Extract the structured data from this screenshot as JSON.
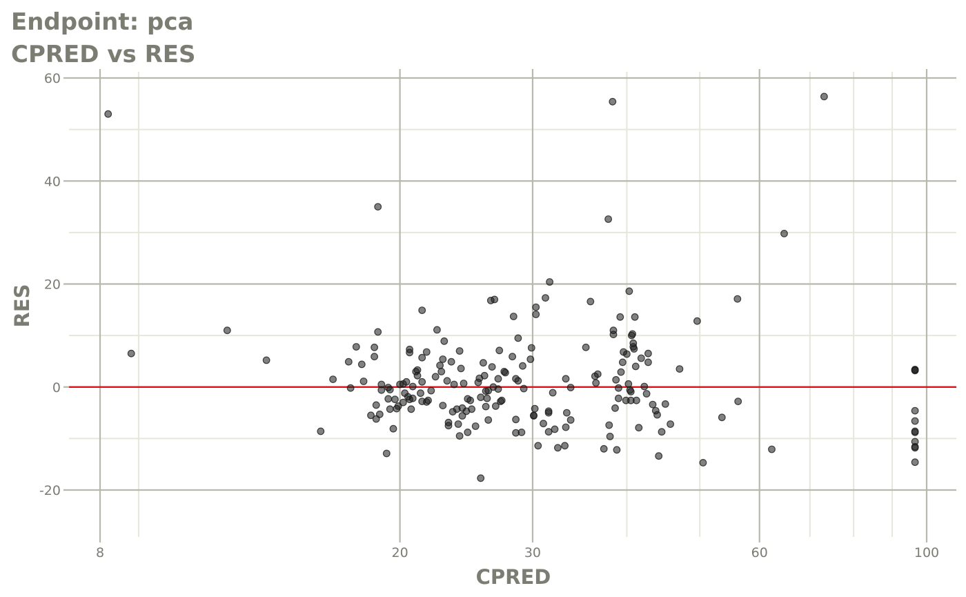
{
  "chart_data": {
    "type": "scatter",
    "title": "Endpoint:  pca",
    "subtitle": "CPRED vs RES",
    "xlabel": "CPRED",
    "ylabel": "RES",
    "x_scale": "log",
    "xlim": [
      7.5,
      118
    ],
    "ylim": [
      -29,
      62
    ],
    "x_ticks": [
      8,
      20,
      30,
      60,
      100
    ],
    "x_tick_labels": [
      "8",
      "20",
      "30",
      "60",
      "100"
    ],
    "x_minor_ticks": [
      9,
      40,
      50,
      70,
      80,
      90
    ],
    "y_ticks": [
      -20,
      0,
      20,
      40,
      60
    ],
    "y_tick_labels": [
      "-20",
      "0",
      "20",
      "40",
      "60"
    ],
    "y_minor_ticks": [
      -10,
      10,
      30,
      50
    ],
    "reference_line": {
      "y": 0,
      "color": "#e8141b"
    },
    "grid": true,
    "colors": {
      "grid_major": "#b8b8ae",
      "grid_minor": "#e6e6da",
      "point": "#1a1a1a",
      "text": "#7b7c72"
    },
    "points": [
      [
        8.2,
        53
      ],
      [
        8.8,
        6.5
      ],
      [
        11.8,
        11
      ],
      [
        13.3,
        5.2
      ],
      [
        16.3,
        1.5
      ],
      [
        15.7,
        -8.6
      ],
      [
        17.2,
        -0.2
      ],
      [
        17.1,
        4.9
      ],
      [
        17.5,
        7.8
      ],
      [
        17.8,
        4.4
      ],
      [
        17.9,
        1.1
      ],
      [
        18.3,
        -5.5
      ],
      [
        18.6,
        -6.2
      ],
      [
        18.8,
        -5.3
      ],
      [
        18.5,
        7.7
      ],
      [
        18.5,
        5.9
      ],
      [
        18.6,
        -3.5
      ],
      [
        18.7,
        10.7
      ],
      [
        18.7,
        35
      ],
      [
        18.9,
        0.5
      ],
      [
        18.9,
        -0.6
      ],
      [
        19.3,
        -0.1
      ],
      [
        19.4,
        -0.5
      ],
      [
        19.3,
        -2.3
      ],
      [
        19.4,
        -4.3
      ],
      [
        19.6,
        -8.1
      ],
      [
        19.2,
        -12.9
      ],
      [
        19.7,
        -2.4
      ],
      [
        19.8,
        -4.2
      ],
      [
        19.9,
        -3.7
      ],
      [
        20.0,
        0.5
      ],
      [
        20.2,
        -3.0
      ],
      [
        20.2,
        0.6
      ],
      [
        20.3,
        -1.2
      ],
      [
        20.4,
        1.0
      ],
      [
        20.5,
        -1.9
      ],
      [
        20.6,
        -2.4
      ],
      [
        20.6,
        7.3
      ],
      [
        20.6,
        6.7
      ],
      [
        20.8,
        -2.2
      ],
      [
        20.7,
        -4.3
      ],
      [
        20.8,
        0.1
      ],
      [
        21.0,
        3.0
      ],
      [
        21.1,
        3.3
      ],
      [
        21.1,
        2.2
      ],
      [
        21.3,
        -1.2
      ],
      [
        21.4,
        14.9
      ],
      [
        21.4,
        5.7
      ],
      [
        21.4,
        1.0
      ],
      [
        21.4,
        -2.8
      ],
      [
        21.7,
        6.8
      ],
      [
        21.8,
        -2.6
      ],
      [
        21.7,
        -2.9
      ],
      [
        22.0,
        -0.7
      ],
      [
        22.3,
        2.0
      ],
      [
        22.4,
        11.1
      ],
      [
        22.6,
        4.2
      ],
      [
        22.7,
        3.0
      ],
      [
        22.8,
        5.4
      ],
      [
        22.9,
        8.9
      ],
      [
        22.8,
        -3.6
      ],
      [
        23.1,
        1.2
      ],
      [
        23.2,
        -6.9
      ],
      [
        23.2,
        -7.5
      ],
      [
        23.4,
        4.9
      ],
      [
        23.5,
        -4.8
      ],
      [
        23.6,
        0.5
      ],
      [
        23.8,
        -4.3
      ],
      [
        23.9,
        -7.2
      ],
      [
        24.0,
        7.0
      ],
      [
        24.2,
        -5.6
      ],
      [
        24.2,
        -4.1
      ],
      [
        24.0,
        -9.5
      ],
      [
        24.1,
        3.6
      ],
      [
        24.3,
        0.7
      ],
      [
        24.5,
        -4.7
      ],
      [
        24.6,
        -2.3
      ],
      [
        24.6,
        -8.8
      ],
      [
        24.8,
        -2.6
      ],
      [
        24.9,
        -4.3
      ],
      [
        25.2,
        -7.6
      ],
      [
        25.4,
        0.9
      ],
      [
        25.5,
        1.7
      ],
      [
        25.6,
        -17.7
      ],
      [
        25.6,
        -2.0
      ],
      [
        25.8,
        4.7
      ],
      [
        25.9,
        2.2
      ],
      [
        26.0,
        -0.8
      ],
      [
        26.0,
        -3.8
      ],
      [
        26.1,
        -2.2
      ],
      [
        26.2,
        -6.4
      ],
      [
        26.2,
        -0.7
      ],
      [
        26.5,
        3.9
      ],
      [
        26.6,
        0.0
      ],
      [
        26.4,
        16.8
      ],
      [
        26.7,
        17.0
      ],
      [
        26.8,
        -3.7
      ],
      [
        27.0,
        -0.4
      ],
      [
        27.0,
        1.6
      ],
      [
        27.2,
        -2.8
      ],
      [
        27.3,
        -2.6
      ],
      [
        27.1,
        7.1
      ],
      [
        27.5,
        3.0
      ],
      [
        27.6,
        2.8
      ],
      [
        28.2,
        5.9
      ],
      [
        28.3,
        13.7
      ],
      [
        28.5,
        1.6
      ],
      [
        28.5,
        -8.9
      ],
      [
        28.5,
        -6.3
      ],
      [
        28.7,
        1.2
      ],
      [
        28.7,
        9.5
      ],
      [
        29.0,
        -8.8
      ],
      [
        29.1,
        4.1
      ],
      [
        29.2,
        -0.3
      ],
      [
        29.9,
        7.6
      ],
      [
        29.8,
        5.4
      ],
      [
        30.1,
        -5.6
      ],
      [
        30.1,
        -5.5
      ],
      [
        30.2,
        -4.2
      ],
      [
        30.3,
        14.1
      ],
      [
        30.3,
        15.5
      ],
      [
        30.5,
        -11.4
      ],
      [
        31.0,
        -7.1
      ],
      [
        31.2,
        17.3
      ],
      [
        31.5,
        -4.7
      ],
      [
        31.5,
        -5.0
      ],
      [
        31.5,
        -8.7
      ],
      [
        31.6,
        20.4
      ],
      [
        31.9,
        -1.1
      ],
      [
        32.1,
        -8.2
      ],
      [
        32.4,
        -11.8
      ],
      [
        33.1,
        -11.4
      ],
      [
        33.2,
        1.6
      ],
      [
        33.2,
        -7.8
      ],
      [
        33.3,
        -5.0
      ],
      [
        33.7,
        -6.4
      ],
      [
        33.7,
        -0.1
      ],
      [
        35.3,
        7.7
      ],
      [
        35.8,
        16.6
      ],
      [
        36.3,
        2.1
      ],
      [
        36.4,
        0.8
      ],
      [
        36.6,
        2.5
      ],
      [
        37.3,
        -12.0
      ],
      [
        37.8,
        32.6
      ],
      [
        37.9,
        -7.4
      ],
      [
        38.0,
        -9.6
      ],
      [
        38.3,
        55.4
      ],
      [
        38.4,
        11
      ],
      [
        38.4,
        10.2
      ],
      [
        38.6,
        -4.1
      ],
      [
        38.7,
        1.4
      ],
      [
        38.8,
        -12.2
      ],
      [
        39.0,
        -0.2
      ],
      [
        39.0,
        -2.2
      ],
      [
        39.2,
        13.6
      ],
      [
        39.3,
        2.9
      ],
      [
        39.5,
        4.8
      ],
      [
        39.6,
        6.8
      ],
      [
        39.9,
        -2.6
      ],
      [
        40.0,
        6.4
      ],
      [
        40.2,
        0.6
      ],
      [
        40.4,
        -0.6
      ],
      [
        40.5,
        -0.9
      ],
      [
        40.3,
        18.6
      ],
      [
        40.6,
        10.0
      ],
      [
        40.7,
        10.3
      ],
      [
        40.5,
        -2.6
      ],
      [
        40.8,
        8.5
      ],
      [
        40.9,
        7.4
      ],
      [
        40.8,
        7.8
      ],
      [
        41.0,
        13.6
      ],
      [
        41.1,
        4.0
      ],
      [
        41.2,
        -2.6
      ],
      [
        41.5,
        -7.9
      ],
      [
        41.8,
        5.6
      ],
      [
        42.2,
        0.1
      ],
      [
        42.5,
        -1.3
      ],
      [
        42.7,
        6.5
      ],
      [
        42.7,
        4.8
      ],
      [
        43.3,
        -3.4
      ],
      [
        43.7,
        -4.6
      ],
      [
        43.9,
        -5.4
      ],
      [
        44.1,
        -13.4
      ],
      [
        44.5,
        -8.7
      ],
      [
        45.0,
        -3.3
      ],
      [
        45.7,
        -7.2
      ],
      [
        47.0,
        3.5
      ],
      [
        49.6,
        12.8
      ],
      [
        50.5,
        -14.7
      ],
      [
        53.5,
        -5.9
      ],
      [
        56.1,
        17.1
      ],
      [
        56.2,
        -2.8
      ],
      [
        62.3,
        -12.1
      ],
      [
        64.7,
        29.8
      ],
      [
        73.1,
        56.4
      ],
      [
        96.5,
        3.4
      ],
      [
        96.5,
        3.2
      ],
      [
        96.5,
        3.3
      ],
      [
        96.5,
        -4.6
      ],
      [
        96.5,
        -6.6
      ],
      [
        96.5,
        -8.6
      ],
      [
        96.5,
        -8.8
      ],
      [
        96.5,
        -10.6
      ],
      [
        96.5,
        -11.6
      ],
      [
        96.5,
        -11.8
      ],
      [
        96.5,
        -14.6
      ]
    ]
  }
}
